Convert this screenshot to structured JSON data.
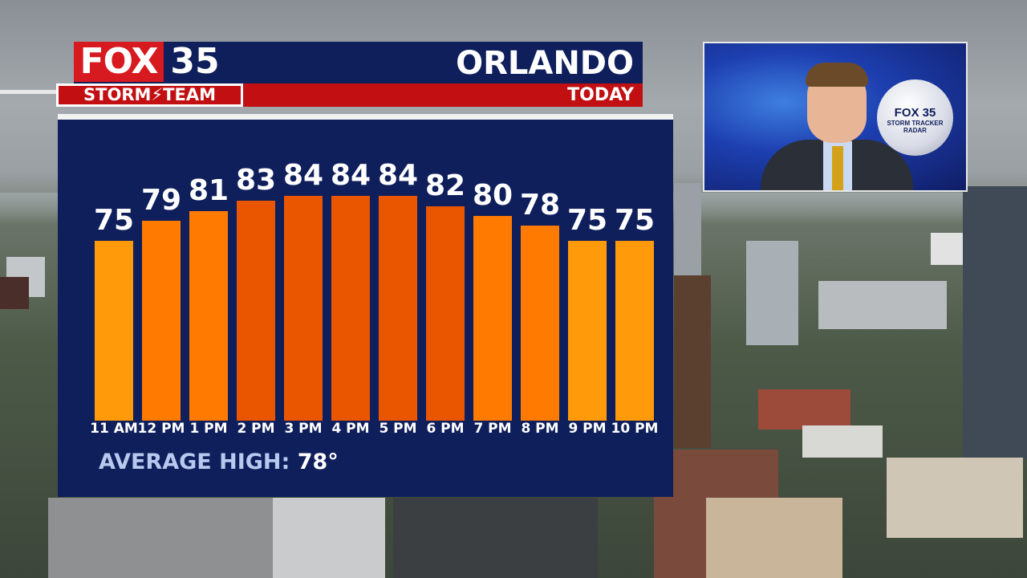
{
  "header": {
    "logo_fox": "FOX",
    "logo_number": "35",
    "logo_team": "STORM⚡TEAM",
    "city": "ORLANDO",
    "period": "TODAY"
  },
  "colors": {
    "navy": "#0f1f5c",
    "red": "#c10f12",
    "bar_cool": "#ff9a0a",
    "bar_warm": "#ff7a00",
    "bar_hot": "#ea5500"
  },
  "chart_data": {
    "type": "bar",
    "categories": [
      "11 AM",
      "12 PM",
      "1 PM",
      "2 PM",
      "3 PM",
      "4 PM",
      "5 PM",
      "6 PM",
      "7 PM",
      "8 PM",
      "9 PM",
      "10 PM"
    ],
    "series": [
      {
        "values": [
          75,
          79,
          81,
          83,
          84,
          84,
          84,
          82,
          80,
          78,
          75,
          75
        ]
      }
    ],
    "data_labels": [
      "75",
      "79",
      "81",
      "83",
      "84",
      "84",
      "84",
      "82",
      "80",
      "78",
      "75",
      "75"
    ],
    "title": "",
    "xlabel": "",
    "ylabel": "",
    "legend": "none",
    "grid": false
  },
  "summary": {
    "label": "AVERAGE HIGH:",
    "value": "78°"
  },
  "inset": {
    "ball_logo": "FOX 35",
    "ball_sub": "STORM TRACKER RADAR"
  }
}
